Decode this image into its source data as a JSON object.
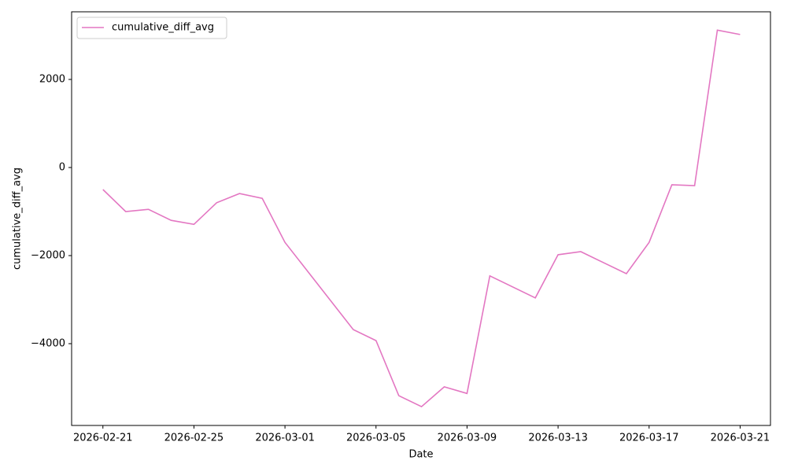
{
  "chart_data": {
    "type": "line",
    "x_label": "Date",
    "y_label": "cumulative_diff_avg",
    "x": [
      "2026-02-21",
      "2026-02-22",
      "2026-02-23",
      "2026-02-24",
      "2026-02-25",
      "2026-02-26",
      "2026-02-27",
      "2026-02-28",
      "2026-03-01",
      "2026-03-04",
      "2026-03-05",
      "2026-03-06",
      "2026-03-07",
      "2026-03-08",
      "2026-03-09",
      "2026-03-10",
      "2026-03-12",
      "2026-03-13",
      "2026-03-14",
      "2026-03-16",
      "2026-03-17",
      "2026-03-18",
      "2026-03-19",
      "2026-03-20",
      "2026-03-21"
    ],
    "series": [
      {
        "name": "cumulative_diff_avg",
        "color": "#e377c2",
        "values": [
          -500,
          -1000,
          -950,
          -1200,
          -1290,
          -800,
          -590,
          -700,
          -1700,
          -3680,
          -3930,
          -5180,
          -5430,
          -4980,
          -5130,
          -2460,
          -2960,
          -1980,
          -1910,
          -2410,
          -1700,
          -390,
          -410,
          3120,
          3020
        ]
      }
    ],
    "xlim": [
      "2026-02-19T15:00",
      "2026-03-22T08:00"
    ],
    "xticks": [
      "2026-02-21",
      "2026-02-25",
      "2026-03-01",
      "2026-03-05",
      "2026-03-09",
      "2026-03-13",
      "2026-03-17",
      "2026-03-21"
    ],
    "ylim": [
      -5857,
      3536
    ],
    "yticks": [
      {
        "value": -4000,
        "label": "−4000"
      },
      {
        "value": -2000,
        "label": "−2000"
      },
      0,
      2000
    ],
    "legend": "upper left",
    "grid": false
  }
}
